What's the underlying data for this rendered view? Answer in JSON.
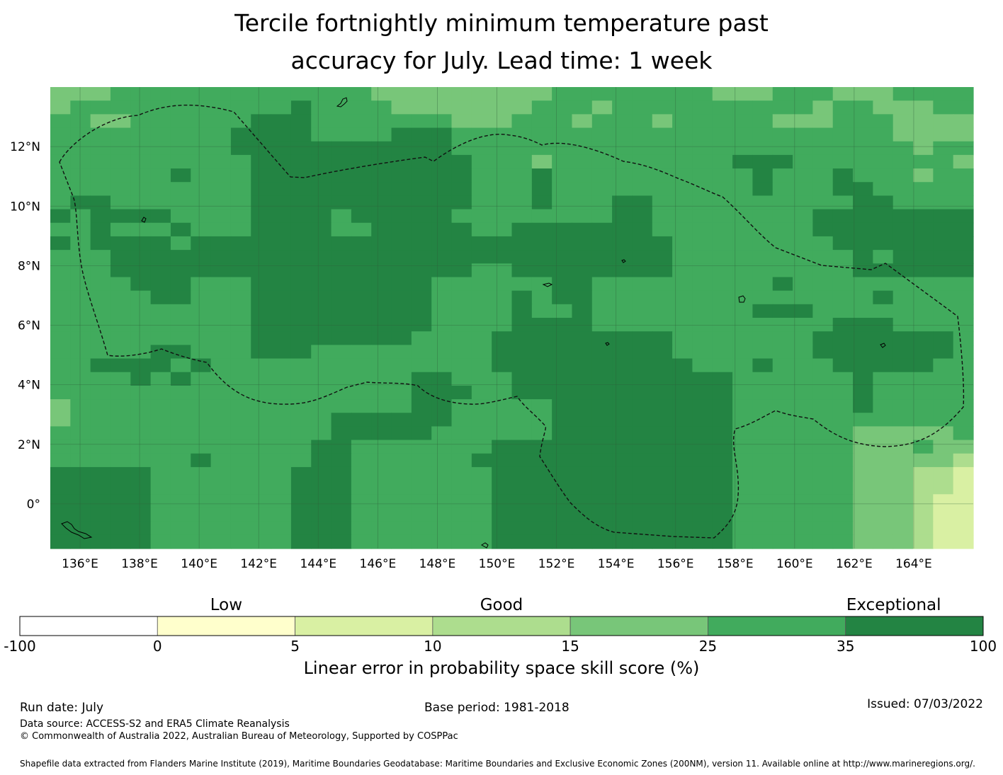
{
  "title_line1": "Tercile fortnightly minimum temperature past",
  "title_line2": "accuracy for July. Lead time: 1 week",
  "map": {
    "lon_range": [
      135,
      166
    ],
    "lat_range": [
      -1.5,
      14
    ],
    "lat_labels": [
      {
        "lat": 12,
        "text": "12°N"
      },
      {
        "lat": 10,
        "text": "10°N"
      },
      {
        "lat": 8,
        "text": "8°N"
      },
      {
        "lat": 6,
        "text": "6°N"
      },
      {
        "lat": 4,
        "text": "4°N"
      },
      {
        "lat": 2,
        "text": "2°N"
      },
      {
        "lat": 0,
        "text": "0°"
      }
    ],
    "lon_labels": [
      {
        "lon": 136,
        "text": "136°E"
      },
      {
        "lon": 138,
        "text": "138°E"
      },
      {
        "lon": 140,
        "text": "140°E"
      },
      {
        "lon": 142,
        "text": "142°E"
      },
      {
        "lon": 144,
        "text": "144°E"
      },
      {
        "lon": 146,
        "text": "146°E"
      },
      {
        "lon": 148,
        "text": "148°E"
      },
      {
        "lon": 150,
        "text": "150°E"
      },
      {
        "lon": 152,
        "text": "152°E"
      },
      {
        "lon": 154,
        "text": "154°E"
      },
      {
        "lon": 156,
        "text": "156°E"
      },
      {
        "lon": 158,
        "text": "158°E"
      },
      {
        "lon": 160,
        "text": "160°E"
      },
      {
        "lon": 162,
        "text": "162°E"
      },
      {
        "lon": 164,
        "text": "164°E"
      }
    ],
    "grid_note": "skill score category per grid cell, row 0 = northernmost; 0=-100..0, 1=0..5, 2=5..10, 3=10..15, 4=15..25, 5=25..35, 6=35..100",
    "grid": [
      "4445555555555555444444444555555554445554445555",
      "4555555555556555544444445554555555555545544455",
      "5544555555666555555544455545554555554445554444",
      "5555555556666555566655555555555555555555554444",
      "5555555556666666666655555555555555555555555455",
      "5555555555666666666665554555555555666555555554",
      "5555556555666666666665556555555555565556555455",
      "5555555555666666666665556555555555565556655555",
      "5665555555666666666665556555665555555555665555",
      "6566665555666656666655555555665555555566666666",
      "5565556555666655666665566666665555555566666666",
      "6566665666666666666666666666666555555556666666",
      "5556666666666666666666666666666555555555656666",
      "5556666666666666666665566666666555555555666666",
      "5555666555666666666555555665555555556555555555",
      "5555566555666666666555565665555555555555565555",
      "5555555555666666666555565565555555566655555555",
      "5555555555666666666555566665555555555556665555",
      "5555555555666666665555666666666555555566666665",
      "5555566555666555555555666666666555555566666665",
      "5566665655555555555555666666666655565556666655",
      "5555656555555555556655566666666666555555655555",
      "5555555555555555556665566666666666555555655555",
      "4555555555555555556655555666666666555555655555",
      "4555555555555566666655555666666666555555555555",
      "5555555555555566666555555666666666555555444445",
      "5555555555555665555555666666666666555555444544",
      "5555555655555665555556666666666666555555444443",
      "6666655555556665555555666666666666555555444332",
      "6666655555556665555555666666666666555555444332",
      "6666655555556665555555666666666666555555444322",
      "6666655555556665555555666666666666555555444322",
      "6666655555556665555555666666666666555555444322",
      "6666655555556665555555666666666666555555444322"
    ]
  },
  "colorbar": {
    "category_labels": [
      {
        "text": "Low",
        "at": 1.5
      },
      {
        "text": "Good",
        "at": 3.5
      },
      {
        "text": "Exceptional",
        "at": 6.35
      }
    ],
    "bins": [
      {
        "color": "#ffffff"
      },
      {
        "color": "#ffffcc"
      },
      {
        "color": "#d9f0a3"
      },
      {
        "color": "#addd8e"
      },
      {
        "color": "#78c679"
      },
      {
        "color": "#41ab5d"
      },
      {
        "color": "#238443"
      }
    ],
    "ticks": [
      "-100",
      "0",
      "5",
      "10",
      "15",
      "25",
      "35",
      "100"
    ],
    "axis_label": "Linear error in probability space skill score (%)"
  },
  "footer": {
    "run_date": "Run date: July",
    "base_period": "Base period: 1981-2018",
    "issued": "Issued: 07/03/2022",
    "data_source": "Data source: ACCESS-S2 and ERA5 Climate Reanalysis",
    "copyright": "© Commonwealth of Australia 2022, Australian Bureau of Meteorology, Supported by COSPPac",
    "shapefile": "Shapefile data extracted from Flanders Marine Institute (2019), Maritime Boundaries Geodatabase: Maritime Boundaries and Exclusive Economic Zones (200NM), version 11. Available online at http://www.marineregions.org/."
  }
}
